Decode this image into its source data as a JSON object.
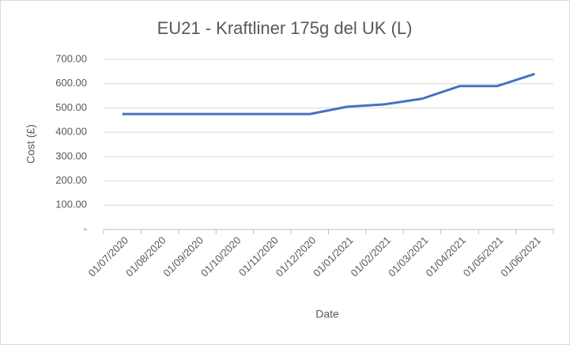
{
  "chart_data": {
    "type": "line",
    "title": "EU21 - Kraftliner 175g del UK (L)",
    "x_label": "Date",
    "y_label": "Cost (£)",
    "categories": [
      "01/07/2020",
      "01/08/2020",
      "01/09/2020",
      "01/10/2020",
      "01/11/2020",
      "01/12/2020",
      "01/01/2021",
      "01/02/2021",
      "01/03/2021",
      "01/04/2021",
      "01/05/2021",
      "01/06/2021"
    ],
    "series": [
      {
        "name": "Cost",
        "color": "#4472c4",
        "values": [
          475,
          475,
          475,
          475,
          475,
          475,
          505,
          515,
          538,
          590,
          590,
          640
        ]
      }
    ],
    "ylim": [
      0,
      700
    ],
    "yticks": [
      {
        "value": 0,
        "label": "-"
      },
      {
        "value": 100,
        "label": "100.00"
      },
      {
        "value": 200,
        "label": "200.00"
      },
      {
        "value": 300,
        "label": "300.00"
      },
      {
        "value": 400,
        "label": "400.00"
      },
      {
        "value": 500,
        "label": "500.00"
      },
      {
        "value": 600,
        "label": "600.00"
      },
      {
        "value": 700,
        "label": "700.00"
      }
    ],
    "grid": true
  }
}
